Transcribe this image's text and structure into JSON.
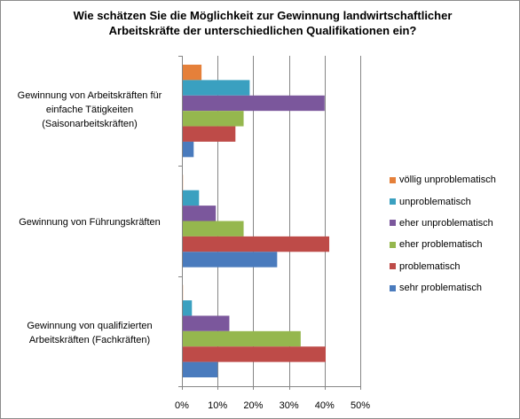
{
  "chart_data": {
    "type": "bar",
    "orientation": "horizontal",
    "title": "Wie schätzen Sie die Möglichkeit zur Gewinnung landwirtschaftlicher Arbeitskräfte der unterschiedlichen Qualifikationen ein?",
    "xlabel": "",
    "ylabel": "",
    "xlim": [
      0,
      50
    ],
    "x_ticks": [
      "0%",
      "10%",
      "20%",
      "30%",
      "40%",
      "50%"
    ],
    "grid": true,
    "legend_position": "right",
    "categories": [
      "Gewinnung von Arbeitskräften für einfache Tätigkeiten (Saisonarbeitskräften)",
      "Gewinnung von Führungskräften",
      "Gewinnung von qualifizierten Arbeitskräften (Fachkräften)"
    ],
    "category_lines": [
      [
        "Gewinnung von Arbeitskräften für",
        "einfache Tätigkeiten",
        "(Saisonarbeitskräften)"
      ],
      [
        "Gewinnung von Führungskräften"
      ],
      [
        "Gewinnung von qualifizierten",
        "Arbeitskräften (Fachkräften)"
      ]
    ],
    "series": [
      {
        "name": "völlig unproblematisch",
        "color": "#E5803A",
        "values": [
          5.5,
          0.3,
          0.3
        ]
      },
      {
        "name": "unproblematisch",
        "color": "#3AA0C0",
        "values": [
          19,
          4.8,
          2.8
        ]
      },
      {
        "name": "eher unproblematisch",
        "color": "#7B579C",
        "values": [
          40,
          9.5,
          13.3
        ]
      },
      {
        "name": "eher problematisch",
        "color": "#95B74E",
        "values": [
          17.3,
          17.3,
          33.3
        ]
      },
      {
        "name": "problematisch",
        "color": "#BE4B48",
        "values": [
          15,
          41.3,
          40.3
        ]
      },
      {
        "name": "sehr problematisch",
        "color": "#4A7BBD",
        "values": [
          3.3,
          26.7,
          10
        ]
      }
    ]
  }
}
